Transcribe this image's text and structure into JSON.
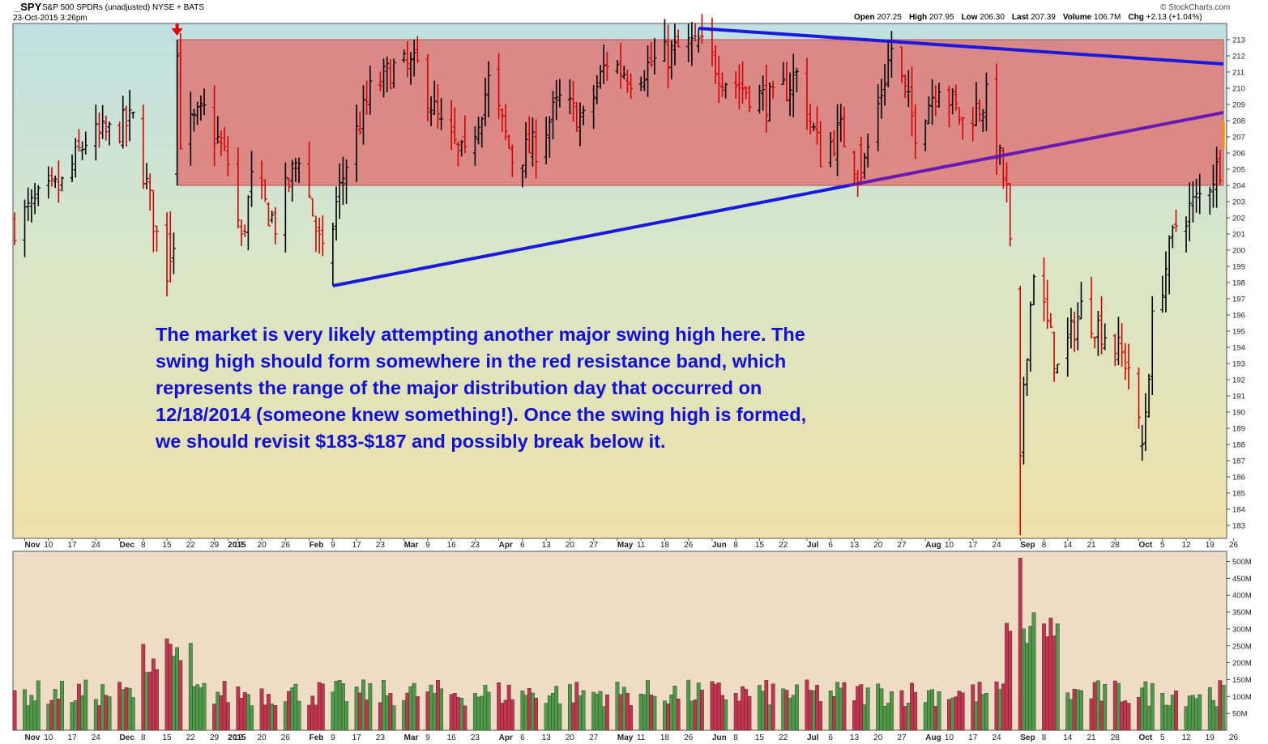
{
  "header": {
    "symbol": "_SPY",
    "description": "S&P 500 SPDRs (unadjusted)  NYSE + BATS",
    "date": "23-Oct-2015 3:26pm",
    "credit": "© StockCharts.com",
    "open_label": "Open",
    "open_value": "207.25",
    "high_label": "High",
    "high_value": "207.95",
    "low_label": "Low",
    "low_value": "206.30",
    "last_label": "Last",
    "last_value": "207.39",
    "volume_label": "Volume",
    "volume_value": "106.7M",
    "chg_label": "Chg",
    "chg_value": "+2.13 (+1.04%)"
  },
  "annotation": {
    "line1": "The market is very likely attempting another major swing high here. The",
    "line2": "swing high should form somewhere in the red resistance band, which",
    "line3": "represents the range of the major distribution day that occurred on",
    "line4": "12/18/2014 (someone knew something!). Once the swing high is formed,",
    "line5": "we should revisit $183-$187 and possibly break below it."
  },
  "colors": {
    "up": "#000000",
    "down": "#d40000",
    "last_bar": "#ff8c00",
    "band_fill": "#e07070",
    "trendline": "#1a1adc",
    "trendline_purple": "#6a1ab4",
    "vol_up": "#4e9a48",
    "vol_down": "#c4344e",
    "bg_top": "#bfe0e2",
    "bg_bottom": "#eee0a8",
    "vol_bg": "#efdcc4",
    "annotation_text": "#1010d8",
    "marker_arrow": "#e00000"
  },
  "chart_data": [
    {
      "type": "ohlc",
      "title": "_SPY S&P 500 SPDRs (unadjusted)",
      "y_axis_side": "right",
      "ylim": [
        182.2,
        214
      ],
      "y_ticks": [
        183,
        184,
        185,
        186,
        187,
        188,
        189,
        190,
        191,
        192,
        193,
        194,
        195,
        196,
        197,
        198,
        199,
        200,
        201,
        202,
        203,
        204,
        205,
        206,
        207,
        208,
        209,
        210,
        211,
        212,
        213
      ],
      "x_range": [
        "2014-10-31",
        "2015-10-23"
      ],
      "x_tick_labels": [
        "Nov",
        "10",
        "17",
        "24",
        "Dec",
        "8",
        "15",
        "22",
        "29",
        "2015",
        "12",
        "20",
        "26",
        "Feb",
        "9",
        "17",
        "23",
        "Mar",
        "9",
        "16",
        "23",
        "Apr",
        "6",
        "13",
        "20",
        "27",
        "May",
        "11",
        "18",
        "26",
        "Jun",
        "8",
        "15",
        "22",
        "Jul",
        "6",
        "13",
        "20",
        "27",
        "Aug",
        "10",
        "17",
        "24",
        "Sep",
        "8",
        "14",
        "21",
        "28",
        "Oct",
        "5",
        "12",
        "19",
        "26"
      ],
      "resistance_band": {
        "x_start": "2014-12-18",
        "x_end": "2015-10-23",
        "y_low": 204.0,
        "y_high": 213.0,
        "label": ""
      },
      "trendlines": [
        {
          "from": [
            "2015-02-02",
            197.8
          ],
          "to": [
            "2015-10-23",
            208.5
          ]
        },
        {
          "from": [
            "2015-05-21",
            213.7
          ],
          "to": [
            "2015-10-23",
            211.5
          ]
        }
      ],
      "marker": {
        "date": "2014-12-18",
        "shape": "down-arrow"
      },
      "key_points": [
        {
          "date": "2014-12-16",
          "low": 198.0
        },
        {
          "date": "2014-12-18",
          "high": 213.0,
          "low": 204.0
        },
        {
          "date": "2015-02-02",
          "low": 197.8
        },
        {
          "date": "2015-05-21",
          "high": 213.7
        },
        {
          "date": "2015-07-08",
          "low": 204.0
        },
        {
          "date": "2015-08-24",
          "low": 182.4
        },
        {
          "date": "2015-09-29",
          "low": 187.0
        },
        {
          "date": "2015-10-23",
          "open": 207.25,
          "high": 207.95,
          "low": 206.3,
          "close": 207.39
        }
      ],
      "series": [
        {
          "field": "close",
          "dates": [
            "2014-10-31",
            "2014-11-07",
            "2014-11-14",
            "2014-11-21",
            "2014-11-28",
            "2014-12-05",
            "2014-12-12",
            "2014-12-16",
            "2014-12-19",
            "2014-12-26",
            "2015-01-02",
            "2015-01-06",
            "2015-01-09",
            "2015-01-16",
            "2015-01-23",
            "2015-01-30",
            "2015-02-06",
            "2015-02-13",
            "2015-02-20",
            "2015-02-27",
            "2015-03-06",
            "2015-03-13",
            "2015-03-20",
            "2015-03-27",
            "2015-04-03",
            "2015-04-10",
            "2015-04-17",
            "2015-04-24",
            "2015-05-01",
            "2015-05-08",
            "2015-05-15",
            "2015-05-21",
            "2015-05-29",
            "2015-06-05",
            "2015-06-12",
            "2015-06-19",
            "2015-06-26",
            "2015-07-02",
            "2015-07-08",
            "2015-07-17",
            "2015-07-24",
            "2015-07-31",
            "2015-08-07",
            "2015-08-14",
            "2015-08-20",
            "2015-08-24",
            "2015-08-28",
            "2015-09-04",
            "2015-09-11",
            "2015-09-18",
            "2015-09-25",
            "2015-09-29",
            "2015-10-02",
            "2015-10-09",
            "2015-10-16",
            "2015-10-22",
            "2015-10-23"
          ],
          "values": [
            201.6,
            203.0,
            204.0,
            206.8,
            207.2,
            208.0,
            200.9,
            198.0,
            207.0,
            208.5,
            205.4,
            200.5,
            204.2,
            201.6,
            206.0,
            199.5,
            205.4,
            209.7,
            211.2,
            211.3,
            207.5,
            205.5,
            210.4,
            205.7,
            206.4,
            209.2,
            207.9,
            211.7,
            210.8,
            211.6,
            212.4,
            212.9,
            210.6,
            209.8,
            209.1,
            210.8,
            205.9,
            207.3,
            204.5,
            212.5,
            207.5,
            210.5,
            207.9,
            209.3,
            203.5,
            189.5,
            199.0,
            192.6,
            196.4,
            194.9,
            192.9,
            187.6,
            195.4,
            201.6,
            203.3,
            205.3,
            207.4
          ]
        }
      ]
    },
    {
      "type": "bar",
      "title": "Volume",
      "ylim": [
        0,
        530
      ],
      "y_unit": "M",
      "y_tick_labels": [
        "50M",
        "100M",
        "150M",
        "200M",
        "250M",
        "300M",
        "350M",
        "400M",
        "450M",
        "500M"
      ],
      "key_points": [
        {
          "date": "2014-12-16",
          "volume": 255
        },
        {
          "date": "2014-12-18",
          "volume": 245
        },
        {
          "date": "2015-08-24",
          "volume": 510
        }
      ],
      "typical_range": [
        70,
        150
      ]
    }
  ]
}
